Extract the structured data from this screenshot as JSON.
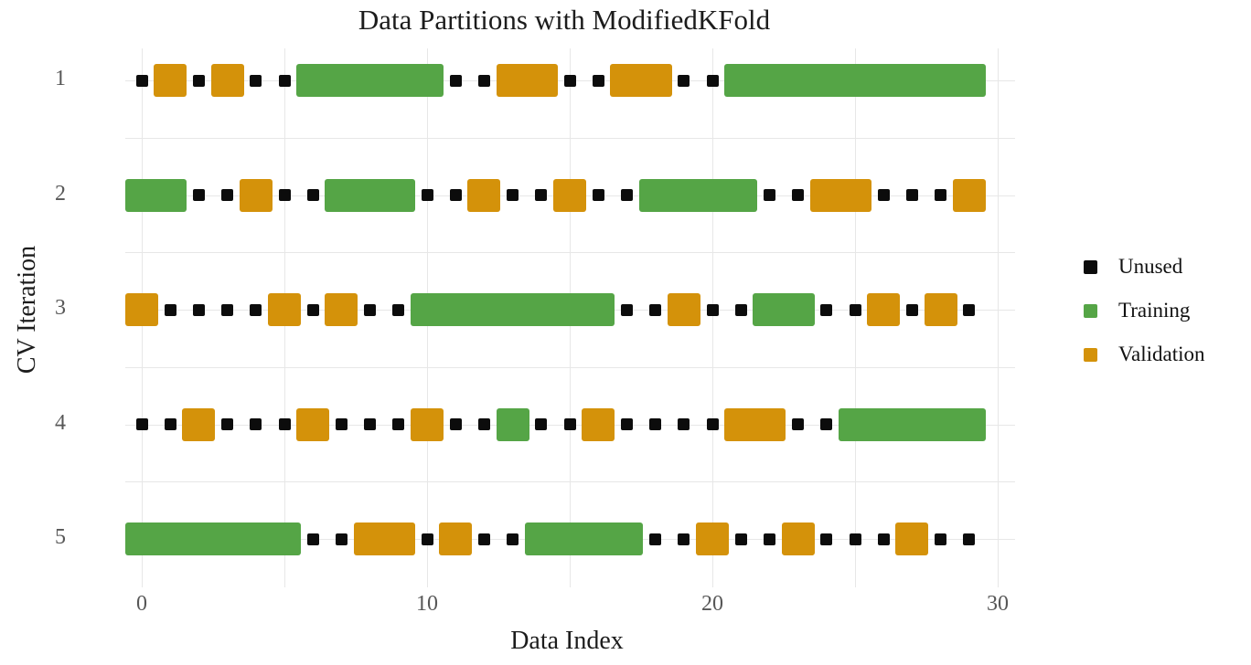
{
  "title": "Data Partitions with ModifiedKFold",
  "colors": {
    "background": "#ffffff",
    "gridline": "#e7e7e7",
    "tick_label": "#575757",
    "text": "#1c1c1c",
    "unused": "#0c0c0c",
    "training": "#55a546",
    "validation": "#d4920a"
  },
  "chart_data": {
    "type": "scatter",
    "title": "Data Partitions with ModifiedKFold",
    "xlabel": "Data Index",
    "ylabel": "CV Iteration",
    "x_ticks": [
      "0",
      "10",
      "20",
      "30"
    ],
    "x_tick_values": [
      0,
      10,
      20,
      30
    ],
    "x_gridline_values": [
      0,
      5,
      10,
      15,
      20,
      25,
      30
    ],
    "y_ticks": [
      "1",
      "2",
      "3",
      "4",
      "5"
    ],
    "y_tick_values": [
      1,
      2,
      3,
      4,
      5
    ],
    "n_points_per_fold": 30,
    "x_range": [
      -0.5,
      30.5
    ],
    "grid": "on",
    "legend_position": "right",
    "legend_entries": [
      {
        "label": "Unused",
        "state": "U",
        "color": "#0c0c0c"
      },
      {
        "label": "Training",
        "state": "T",
        "color": "#55a546"
      },
      {
        "label": "Validation",
        "state": "V",
        "color": "#d4920a"
      }
    ],
    "state_legend": {
      "U": "Unused",
      "T": "Training",
      "V": "Validation"
    },
    "folds": [
      {
        "iteration": "1",
        "states": "UVUVUUTTTTTUUVVUUVVUUTTTTTTTTT"
      },
      {
        "iteration": "2",
        "states": "TTUUVUUTTTUUVUUVUUTTTTUUVVUUUV"
      },
      {
        "iteration": "3",
        "states": "VUUUUVUVUUTTTTTTTUUVUUTTUUVUVU"
      },
      {
        "iteration": "4",
        "states": "UUVUUUVUUUVUUTUUVUUUUVVUUTTTTT"
      },
      {
        "iteration": "5",
        "states": "TTTTTTUUVVUVUUTTTTUUVUUVUUUVUU"
      }
    ]
  }
}
